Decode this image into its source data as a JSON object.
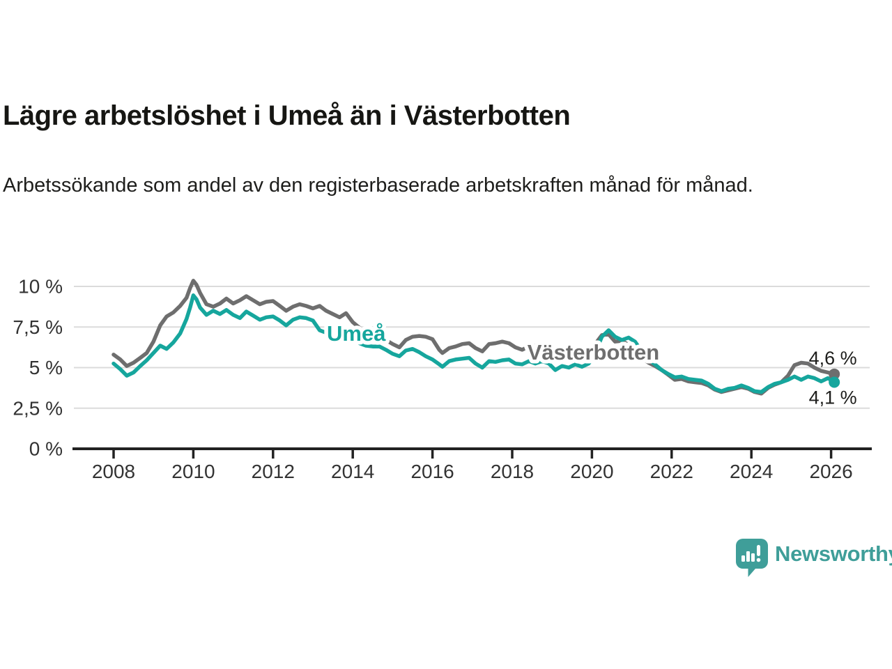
{
  "chart_data": {
    "type": "line",
    "title": "Lägre arbetslöshet i Umeå än i Västerbotten",
    "subtitle": "Arbetssökande som andel av den registerbaserade arbetskraften månad för månad.",
    "unit": "%",
    "grid": true,
    "legend": "inline-labels",
    "xlim": [
      2008,
      2026.3
    ],
    "ylim": [
      0,
      10.8
    ],
    "x_ticks": [
      {
        "label": "2008",
        "value": 2008
      },
      {
        "label": "2010",
        "value": 2010
      },
      {
        "label": "2012",
        "value": 2012
      },
      {
        "label": "2014",
        "value": 2014
      },
      {
        "label": "2016",
        "value": 2016
      },
      {
        "label": "2018",
        "value": 2018
      },
      {
        "label": "2020",
        "value": 2020
      },
      {
        "label": "2022",
        "value": 2022
      },
      {
        "label": "2024",
        "value": 2024
      },
      {
        "label": "2026",
        "value": 2026
      }
    ],
    "y_ticks": [
      {
        "label": "0 %",
        "value": 0
      },
      {
        "label": "2,5 %",
        "value": 2.5
      },
      {
        "label": "5 %",
        "value": 5
      },
      {
        "label": "7,5 %",
        "value": 7.5
      },
      {
        "label": "10 %",
        "value": 10
      }
    ],
    "series": [
      {
        "name": "Västerbotten",
        "color": "#6e6e6e",
        "inline_label": {
          "text": "Västerbotten",
          "x": 2018.38,
          "y": 5.95
        },
        "end_value_label": "4,6 %",
        "end_label_side": "above",
        "points": [
          [
            2008.0,
            5.8
          ],
          [
            2008.17,
            5.5
          ],
          [
            2008.33,
            5.1
          ],
          [
            2008.5,
            5.3
          ],
          [
            2008.67,
            5.6
          ],
          [
            2008.83,
            5.9
          ],
          [
            2009.0,
            6.6
          ],
          [
            2009.17,
            7.6
          ],
          [
            2009.33,
            8.15
          ],
          [
            2009.5,
            8.4
          ],
          [
            2009.67,
            8.8
          ],
          [
            2009.83,
            9.3
          ],
          [
            2009.92,
            9.9
          ],
          [
            2010.0,
            10.35
          ],
          [
            2010.08,
            10.1
          ],
          [
            2010.17,
            9.6
          ],
          [
            2010.33,
            8.9
          ],
          [
            2010.5,
            8.75
          ],
          [
            2010.67,
            8.95
          ],
          [
            2010.83,
            9.25
          ],
          [
            2011.0,
            8.95
          ],
          [
            2011.17,
            9.15
          ],
          [
            2011.33,
            9.4
          ],
          [
            2011.5,
            9.15
          ],
          [
            2011.67,
            8.9
          ],
          [
            2011.83,
            9.05
          ],
          [
            2012.0,
            9.1
          ],
          [
            2012.17,
            8.8
          ],
          [
            2012.33,
            8.5
          ],
          [
            2012.5,
            8.75
          ],
          [
            2012.67,
            8.9
          ],
          [
            2012.83,
            8.8
          ],
          [
            2013.0,
            8.65
          ],
          [
            2013.17,
            8.8
          ],
          [
            2013.33,
            8.5
          ],
          [
            2013.5,
            8.3
          ],
          [
            2013.67,
            8.1
          ],
          [
            2013.83,
            8.35
          ],
          [
            2014.0,
            7.8
          ],
          [
            2014.17,
            7.45
          ],
          [
            2014.33,
            7.15
          ],
          [
            2014.5,
            7.05
          ],
          [
            2014.67,
            7.1
          ],
          [
            2014.83,
            6.7
          ],
          [
            2015.0,
            6.45
          ],
          [
            2015.17,
            6.25
          ],
          [
            2015.33,
            6.7
          ],
          [
            2015.5,
            6.9
          ],
          [
            2015.67,
            6.95
          ],
          [
            2015.83,
            6.9
          ],
          [
            2016.0,
            6.75
          ],
          [
            2016.17,
            6.1
          ],
          [
            2016.25,
            5.9
          ],
          [
            2016.42,
            6.2
          ],
          [
            2016.58,
            6.3
          ],
          [
            2016.75,
            6.45
          ],
          [
            2016.92,
            6.5
          ],
          [
            2017.08,
            6.2
          ],
          [
            2017.25,
            6.0
          ],
          [
            2017.42,
            6.45
          ],
          [
            2017.58,
            6.5
          ],
          [
            2017.75,
            6.6
          ],
          [
            2017.92,
            6.5
          ],
          [
            2018.08,
            6.25
          ],
          [
            2018.25,
            6.1
          ],
          [
            2018.42,
            6.3
          ],
          [
            2018.58,
            6.35
          ],
          [
            2018.75,
            6.45
          ],
          [
            2018.92,
            6.3
          ],
          [
            2019.08,
            6.0
          ],
          [
            2019.25,
            6.1
          ],
          [
            2019.42,
            6.05
          ],
          [
            2019.58,
            6.1
          ],
          [
            2019.75,
            6.0
          ],
          [
            2019.92,
            6.1
          ],
          [
            2020.08,
            6.45
          ],
          [
            2020.25,
            7.0
          ],
          [
            2020.42,
            7.05
          ],
          [
            2020.58,
            6.6
          ],
          [
            2020.75,
            6.65
          ],
          [
            2020.92,
            6.4
          ],
          [
            2021.08,
            6.0
          ],
          [
            2021.25,
            5.6
          ],
          [
            2021.42,
            5.3
          ],
          [
            2021.58,
            5.1
          ],
          [
            2021.75,
            4.85
          ],
          [
            2021.92,
            4.55
          ],
          [
            2022.08,
            4.25
          ],
          [
            2022.25,
            4.3
          ],
          [
            2022.42,
            4.15
          ],
          [
            2022.58,
            4.1
          ],
          [
            2022.75,
            4.05
          ],
          [
            2022.92,
            3.9
          ],
          [
            2023.08,
            3.65
          ],
          [
            2023.25,
            3.5
          ],
          [
            2023.42,
            3.6
          ],
          [
            2023.58,
            3.7
          ],
          [
            2023.75,
            3.8
          ],
          [
            2023.92,
            3.7
          ],
          [
            2024.08,
            3.5
          ],
          [
            2024.25,
            3.4
          ],
          [
            2024.42,
            3.75
          ],
          [
            2024.58,
            3.95
          ],
          [
            2024.75,
            4.1
          ],
          [
            2024.92,
            4.5
          ],
          [
            2025.08,
            5.15
          ],
          [
            2025.25,
            5.3
          ],
          [
            2025.42,
            5.25
          ],
          [
            2025.58,
            5.0
          ],
          [
            2025.75,
            4.8
          ],
          [
            2025.92,
            4.7
          ],
          [
            2026.08,
            4.6
          ]
        ]
      },
      {
        "name": "Umeå",
        "color": "#16a69d",
        "inline_label": {
          "text": "Umeå",
          "x": 2013.35,
          "y": 7.1
        },
        "end_value_label": "4,1 %",
        "end_label_side": "below",
        "points": [
          [
            2008.0,
            5.25
          ],
          [
            2008.17,
            4.9
          ],
          [
            2008.33,
            4.5
          ],
          [
            2008.5,
            4.7
          ],
          [
            2008.67,
            5.1
          ],
          [
            2008.83,
            5.45
          ],
          [
            2009.0,
            5.9
          ],
          [
            2009.17,
            6.35
          ],
          [
            2009.33,
            6.15
          ],
          [
            2009.5,
            6.55
          ],
          [
            2009.67,
            7.1
          ],
          [
            2009.83,
            8.0
          ],
          [
            2009.92,
            8.7
          ],
          [
            2010.0,
            9.45
          ],
          [
            2010.08,
            9.2
          ],
          [
            2010.17,
            8.7
          ],
          [
            2010.33,
            8.25
          ],
          [
            2010.5,
            8.5
          ],
          [
            2010.67,
            8.3
          ],
          [
            2010.83,
            8.55
          ],
          [
            2011.0,
            8.25
          ],
          [
            2011.17,
            8.05
          ],
          [
            2011.33,
            8.45
          ],
          [
            2011.5,
            8.2
          ],
          [
            2011.67,
            7.95
          ],
          [
            2011.83,
            8.1
          ],
          [
            2012.0,
            8.15
          ],
          [
            2012.17,
            7.9
          ],
          [
            2012.33,
            7.6
          ],
          [
            2012.5,
            7.95
          ],
          [
            2012.67,
            8.1
          ],
          [
            2012.83,
            8.05
          ],
          [
            2013.0,
            7.9
          ],
          [
            2013.17,
            7.3
          ],
          [
            2013.33,
            7.15
          ],
          [
            2013.5,
            7.1
          ],
          [
            2013.67,
            7.0
          ],
          [
            2013.83,
            7.1
          ],
          [
            2014.0,
            6.7
          ],
          [
            2014.17,
            6.5
          ],
          [
            2014.33,
            6.35
          ],
          [
            2014.5,
            6.3
          ],
          [
            2014.67,
            6.3
          ],
          [
            2014.83,
            6.1
          ],
          [
            2015.0,
            5.85
          ],
          [
            2015.17,
            5.7
          ],
          [
            2015.33,
            6.05
          ],
          [
            2015.5,
            6.15
          ],
          [
            2015.67,
            5.95
          ],
          [
            2015.83,
            5.7
          ],
          [
            2016.0,
            5.5
          ],
          [
            2016.17,
            5.2
          ],
          [
            2016.25,
            5.05
          ],
          [
            2016.42,
            5.4
          ],
          [
            2016.58,
            5.5
          ],
          [
            2016.75,
            5.55
          ],
          [
            2016.92,
            5.6
          ],
          [
            2017.08,
            5.25
          ],
          [
            2017.25,
            5.0
          ],
          [
            2017.42,
            5.4
          ],
          [
            2017.58,
            5.35
          ],
          [
            2017.75,
            5.45
          ],
          [
            2017.92,
            5.5
          ],
          [
            2018.08,
            5.25
          ],
          [
            2018.25,
            5.2
          ],
          [
            2018.42,
            5.4
          ],
          [
            2018.58,
            5.25
          ],
          [
            2018.75,
            5.4
          ],
          [
            2018.92,
            5.25
          ],
          [
            2019.08,
            4.85
          ],
          [
            2019.25,
            5.1
          ],
          [
            2019.42,
            5.0
          ],
          [
            2019.58,
            5.2
          ],
          [
            2019.75,
            5.05
          ],
          [
            2019.92,
            5.25
          ],
          [
            2020.08,
            5.9
          ],
          [
            2020.25,
            6.9
          ],
          [
            2020.42,
            7.3
          ],
          [
            2020.58,
            6.9
          ],
          [
            2020.75,
            6.7
          ],
          [
            2020.92,
            6.85
          ],
          [
            2021.08,
            6.6
          ],
          [
            2021.25,
            6.0
          ],
          [
            2021.42,
            5.5
          ],
          [
            2021.58,
            5.2
          ],
          [
            2021.75,
            4.85
          ],
          [
            2021.92,
            4.6
          ],
          [
            2022.08,
            4.4
          ],
          [
            2022.25,
            4.45
          ],
          [
            2022.42,
            4.3
          ],
          [
            2022.58,
            4.25
          ],
          [
            2022.75,
            4.2
          ],
          [
            2022.92,
            4.0
          ],
          [
            2023.08,
            3.7
          ],
          [
            2023.25,
            3.55
          ],
          [
            2023.42,
            3.7
          ],
          [
            2023.58,
            3.75
          ],
          [
            2023.75,
            3.9
          ],
          [
            2023.92,
            3.75
          ],
          [
            2024.08,
            3.55
          ],
          [
            2024.25,
            3.5
          ],
          [
            2024.42,
            3.8
          ],
          [
            2024.58,
            4.0
          ],
          [
            2024.75,
            4.1
          ],
          [
            2024.92,
            4.25
          ],
          [
            2025.08,
            4.45
          ],
          [
            2025.25,
            4.25
          ],
          [
            2025.42,
            4.45
          ],
          [
            2025.58,
            4.35
          ],
          [
            2025.75,
            4.15
          ],
          [
            2025.92,
            4.35
          ],
          [
            2026.08,
            4.1
          ]
        ]
      }
    ]
  },
  "branding": {
    "label": "Newsworthy",
    "color": "#3f9e99",
    "icon": "newsworthy-speech-bubble-chart-icon"
  },
  "colors": {
    "umea_line": "#16a69d",
    "vasterbotten_line": "#6e6e6e",
    "gridline": "#dbdbdb",
    "axis": "#222222",
    "tick_text": "#333333"
  }
}
